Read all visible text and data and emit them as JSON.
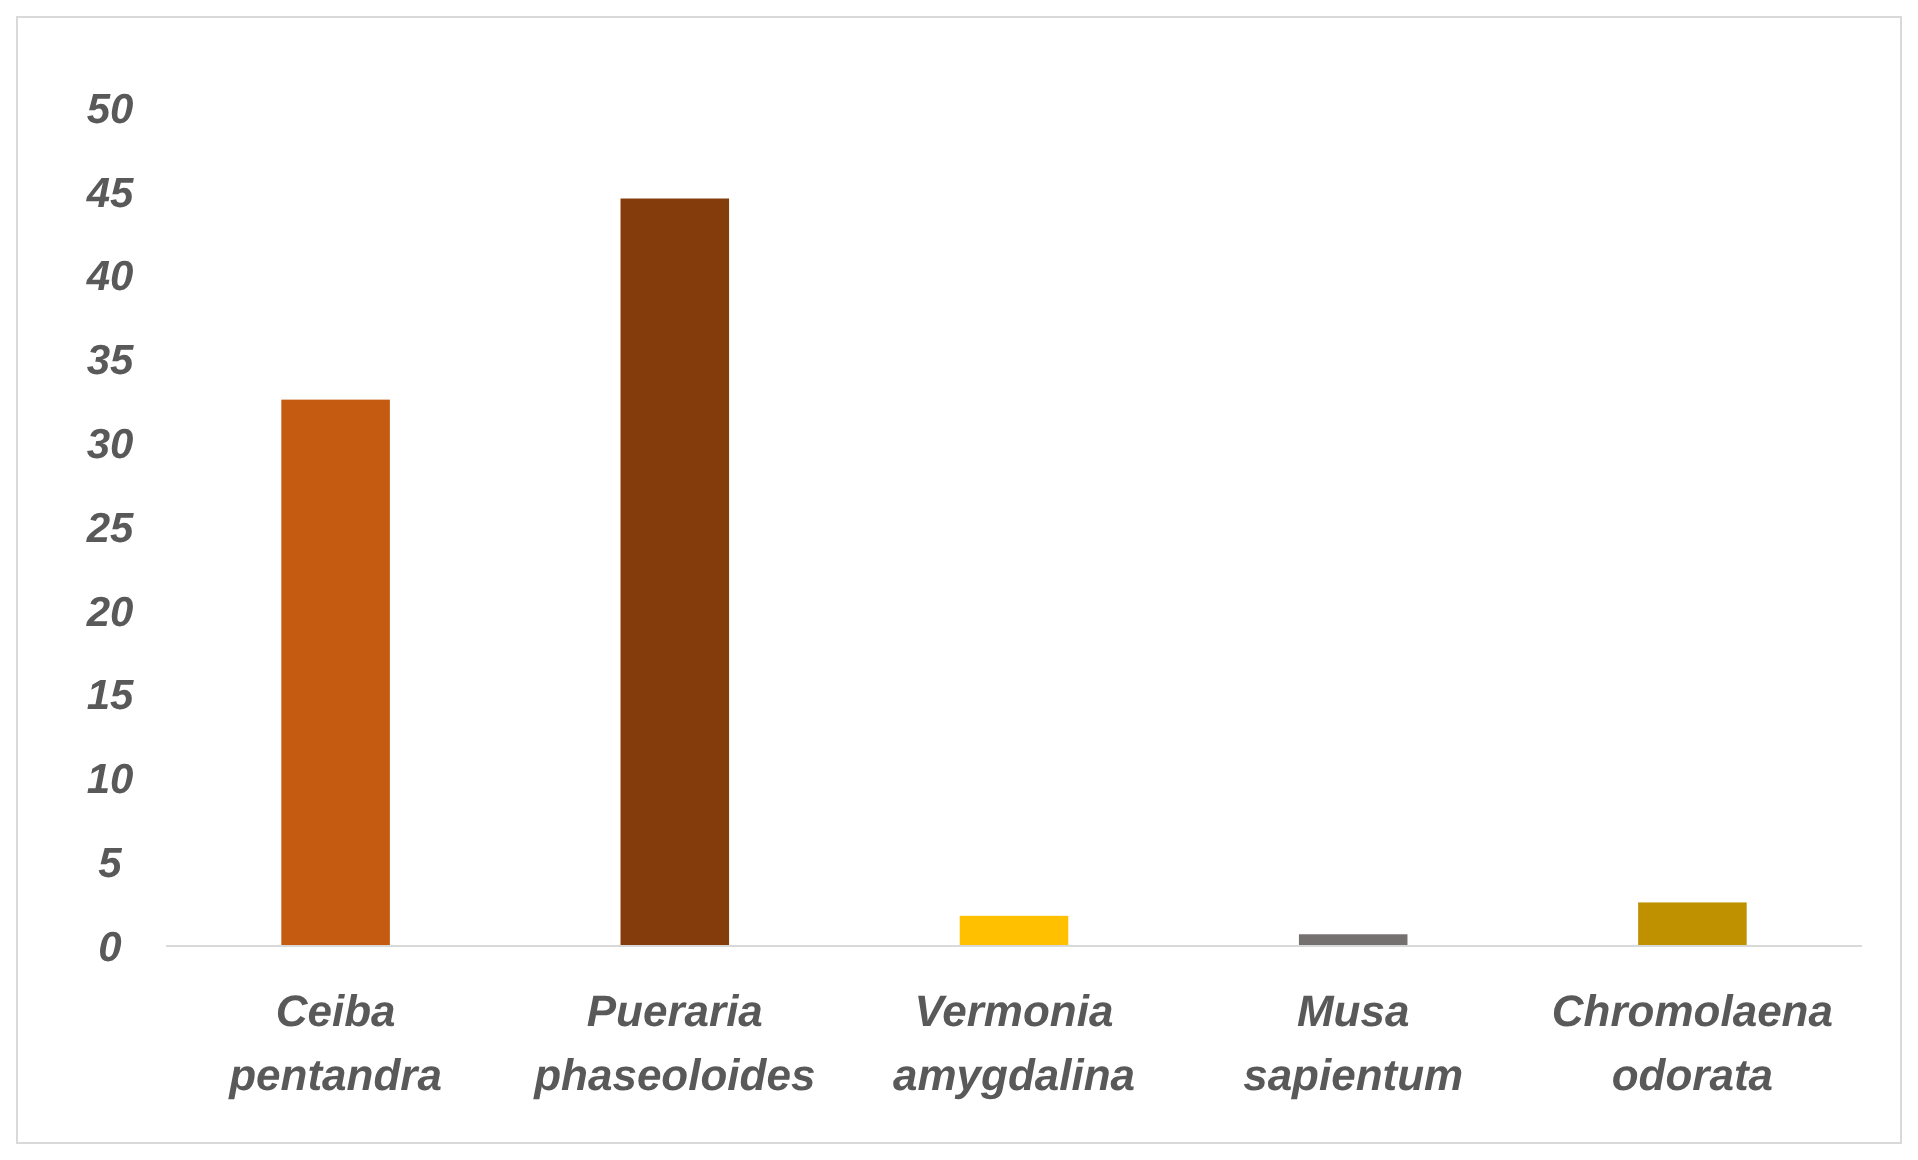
{
  "chart_data": {
    "type": "bar",
    "categories": [
      "Ceiba pentandra",
      "Pueraria phaseoloides",
      "Vermonia amygdalina",
      "Musa sapientum",
      "Chromolaena odorata"
    ],
    "values": [
      32.6,
      44.6,
      1.8,
      0.7,
      2.6
    ],
    "colors": [
      "#c55a11",
      "#843c0c",
      "#ffc000",
      "#767171",
      "#bf9000"
    ],
    "ylim": [
      0,
      50
    ],
    "yticks": [
      0,
      5,
      10,
      15,
      20,
      25,
      30,
      35,
      40,
      45,
      50
    ],
    "grid": false
  }
}
